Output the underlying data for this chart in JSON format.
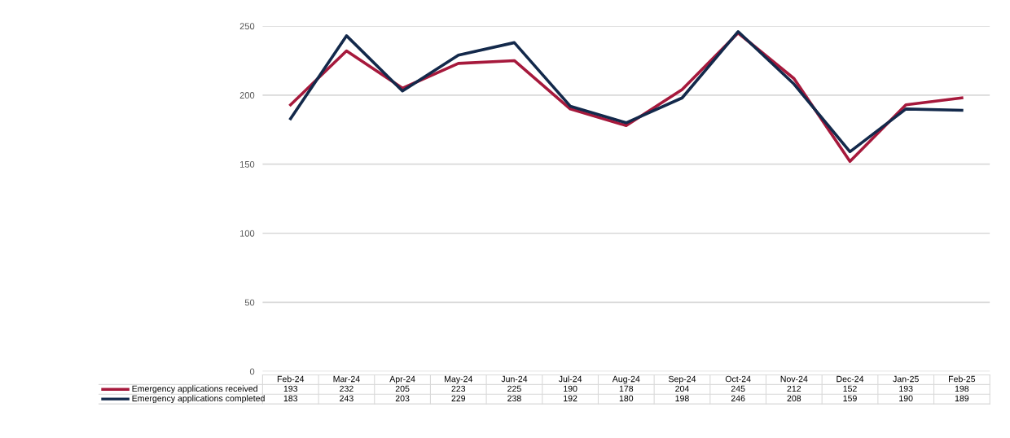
{
  "chart_data": {
    "type": "line",
    "categories": [
      "Feb-24",
      "Mar-24",
      "Apr-24",
      "May-24",
      "Jun-24",
      "Jul-24",
      "Aug-24",
      "Sep-24",
      "Oct-24",
      "Nov-24",
      "Dec-24",
      "Jan-25",
      "Feb-25"
    ],
    "series": [
      {
        "name": "Emergency applications received",
        "color": "#a6193c",
        "values": [
          193,
          232,
          205,
          223,
          225,
          190,
          178,
          204,
          245,
          212,
          152,
          193,
          198
        ]
      },
      {
        "name": "Emergency applications completed",
        "color": "#13294b",
        "values": [
          183,
          243,
          203,
          229,
          238,
          192,
          180,
          198,
          246,
          208,
          159,
          190,
          189
        ]
      }
    ],
    "ylim": [
      0,
      250
    ],
    "yticks": [
      0,
      50,
      100,
      150,
      200,
      250
    ],
    "grid": "y",
    "data_labels": true,
    "legend": "bottom",
    "marker": "none",
    "line_style": "solid"
  }
}
